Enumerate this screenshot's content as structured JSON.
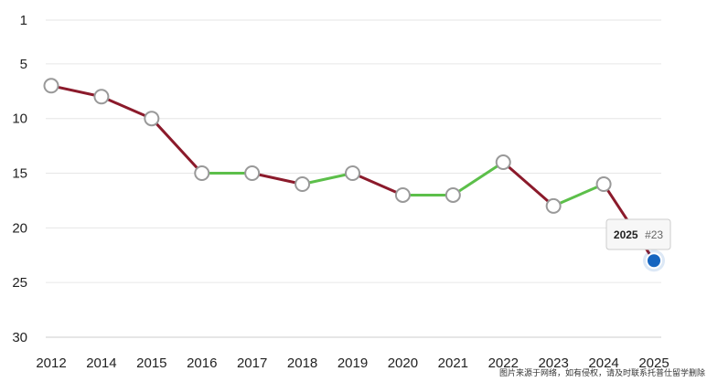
{
  "chart_data": {
    "type": "line",
    "x": [
      "2012",
      "2014",
      "2015",
      "2016",
      "2017",
      "2018",
      "2019",
      "2020",
      "2021",
      "2022",
      "2023",
      "2024",
      "2025"
    ],
    "values": [
      7,
      8,
      10,
      15,
      15,
      16,
      15,
      17,
      17,
      14,
      18,
      16,
      23
    ],
    "y_ticks": [
      1,
      5,
      10,
      15,
      20,
      25,
      30
    ],
    "ylim": [
      1,
      30
    ],
    "y_reversed": true,
    "grid": true,
    "colors": {
      "decline": "#8b1a2b",
      "improve": "#5cbf4a",
      "marker_fill": "#ffffff",
      "marker_stroke": "#999999",
      "highlight": "#1565c0"
    },
    "tooltip": {
      "year": "2025",
      "rank": "#23"
    }
  },
  "watermark": "图片来源于网络，如有侵权，请及时联系托普仕留学删除"
}
